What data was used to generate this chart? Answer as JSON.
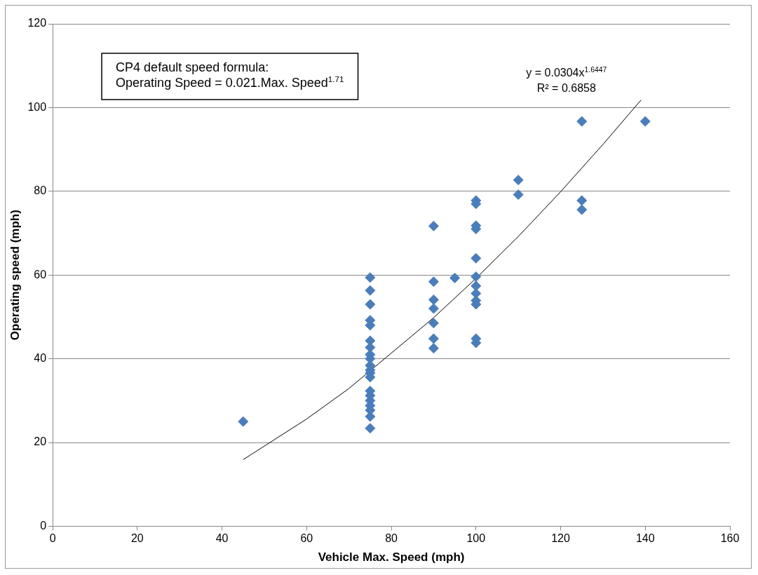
{
  "chart_data": {
    "type": "scatter",
    "xlabel": "Vehicle Max. Speed (mph)",
    "ylabel": "Operating speed (mph)",
    "xlim": [
      0,
      160
    ],
    "xticks": [
      0,
      20,
      40,
      60,
      80,
      100,
      120,
      140,
      160
    ],
    "ylim": [
      0,
      120
    ],
    "yticks": [
      0,
      20,
      40,
      60,
      80,
      100,
      120
    ],
    "grid": "y",
    "legend": false,
    "marker": "diamond",
    "annotations": [
      "CP4 default speed formula:\nOperating Speed = 0.021.Max. Speed$^{1.71}$",
      "y = 0.0304x$^{1.6447}$\nR² = 0.6858"
    ],
    "series": [
      {
        "color": "#4a7ebb",
        "x": [
          45,
          75,
          75,
          75,
          75,
          75,
          75,
          75,
          75,
          75,
          75,
          75,
          75,
          75,
          75,
          75,
          75,
          75,
          75,
          75,
          75,
          90,
          90,
          90,
          90,
          90,
          90,
          90,
          95,
          100,
          100,
          100,
          100,
          100,
          100,
          100,
          100,
          100,
          100,
          100,
          100,
          110,
          110,
          125,
          125,
          125,
          140
        ],
        "values": [
          25,
          59.4,
          56.3,
          53,
          49.2,
          48,
          44.3,
          42.7,
          41,
          40,
          38.4,
          37.3,
          36.6,
          35.6,
          32.3,
          31.2,
          30,
          28.8,
          27.7,
          26.2,
          23.4,
          71.7,
          58.4,
          54.1,
          52,
          48.5,
          44.8,
          42.5,
          59.3,
          77.8,
          77,
          71.8,
          71,
          64,
          59.6,
          57.4,
          55.6,
          53.9,
          53,
          44.8,
          43.8,
          82.7,
          79.2,
          96.7,
          77.8,
          75.6,
          96.7
        ]
      },
      {
        "type": "line",
        "color": "#000000",
        "marker": "none",
        "x": [
          45,
          60,
          70,
          90,
          100,
          110,
          120,
          130,
          139
        ],
        "values": [
          15.9,
          25.6,
          32.9,
          49.8,
          59.2,
          69.2,
          79.9,
          91.2,
          101.8
        ]
      }
    ]
  }
}
